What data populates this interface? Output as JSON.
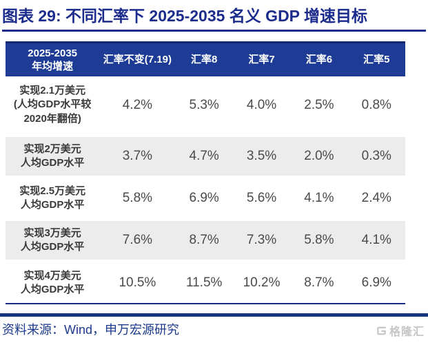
{
  "title": "图表 29: 不同汇率下 2025-2035 名义 GDP 增速目标",
  "source_note": "资料来源：Wind，申万宏源研究",
  "logo": {
    "icon": "gelonghui-g-mark",
    "text": "格隆汇"
  },
  "colors": {
    "title_navy": "#1B2C8C",
    "header_bg": "#1E3C96",
    "header_top_border": "#152A6E",
    "alt_row_bg": "#ECECEC",
    "label_text": "#3A3A3A",
    "value_text": "#4A4A4A",
    "footer_divider": "#16357F",
    "source_text": "#1C3A8C",
    "logo_gray": "#C6C6C6"
  },
  "chart_data": {
    "type": "table",
    "title": "不同汇率下 2025-2035 名义 GDP 增速目标",
    "figure_label": "图表 29",
    "columns": [
      "2025-2035\n年均增速",
      "汇率不变(7.19)",
      "汇率8",
      "汇率7",
      "汇率6",
      "汇率5"
    ],
    "rows": [
      {
        "label": "实现2.1万美元\n(人均GDP水平较\n2020年翻倍)",
        "values": [
          "4.2%",
          "5.3%",
          "4.0%",
          "2.5%",
          "0.8%"
        ]
      },
      {
        "label": "实现2万美元\n人均GDP水平",
        "values": [
          "3.7%",
          "4.7%",
          "3.5%",
          "2.0%",
          "0.3%"
        ]
      },
      {
        "label": "实现2.5万美元\n人均GDP水平",
        "values": [
          "5.8%",
          "6.9%",
          "5.6%",
          "4.1%",
          "2.4%"
        ]
      },
      {
        "label": "实现3万美元\n人均GDP水平",
        "values": [
          "7.6%",
          "8.7%",
          "7.3%",
          "5.8%",
          "4.1%"
        ]
      },
      {
        "label": "实现4万美元\n人均GDP水平",
        "values": [
          "10.5%",
          "11.5%",
          "10.2%",
          "8.7%",
          "6.9%"
        ]
      }
    ]
  }
}
